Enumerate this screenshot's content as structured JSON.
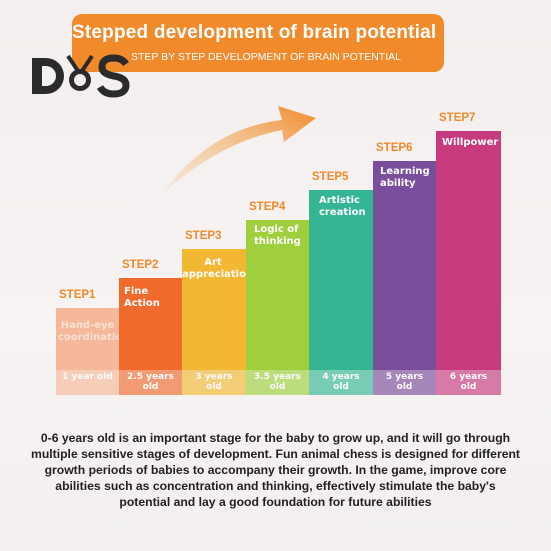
{
  "header": {
    "title": "Stepped development of brain potential",
    "subtitle": "STEP BY STEP DEVELOPMENT OF BRAIN POTENTIAL"
  },
  "logo": {
    "text": "DS"
  },
  "steps": [
    {
      "step": "STEP1",
      "label": "Hand-eye coordination",
      "age": "1 year old",
      "color": "#f5b89a"
    },
    {
      "step": "STEP2",
      "label": "Fine Action",
      "age": "2.5 years old",
      "color": "#f06a2e"
    },
    {
      "step": "STEP3",
      "label": "Art appreciation",
      "age": "3 years old",
      "color": "#f2b733"
    },
    {
      "step": "STEP4",
      "label": "Logic of thinking",
      "age": "3.5 years old",
      "color": "#9fcf3c"
    },
    {
      "step": "STEP5",
      "label": "Artistic creation",
      "age": "4 years old",
      "color": "#35b594"
    },
    {
      "step": "STEP6",
      "label": "Learning ability",
      "age": "5 years old",
      "color": "#7a4e9c"
    },
    {
      "step": "STEP7",
      "label": "Willpower",
      "age": "6 years old",
      "color": "#c83a7e"
    }
  ],
  "colors": {
    "step_text": "#f08a2a",
    "banner": "#f08a2a"
  },
  "description": "0-6 years old is an important stage for the baby to grow up, and it will go through multiple sensitive stages of development. Fun animal chess is designed for different growth periods of babies to accompany their growth. In the game, improve core abilities such as concentration and thinking, effectively stimulate the baby's potential and lay a good foundation for future abilities"
}
